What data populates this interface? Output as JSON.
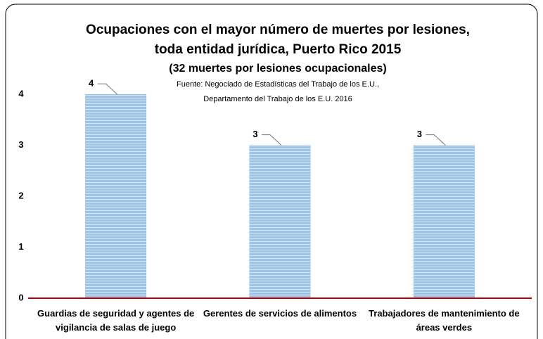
{
  "chart_data": {
    "type": "bar",
    "title": [
      "Ocupaciones con el mayor número de muertes por lesiones,",
      "toda entidad jurídica, Puerto Rico 2015"
    ],
    "subtitle": "(32 muertes por lesiones ocupacionales)",
    "source": [
      "Fuente: Negociado de Estadísticas del Trabajo de los E.U.,",
      "Departamento del Trabajo de los E.U. 2016"
    ],
    "categories": [
      "Guardias de seguridad y agentes de vigilancia de salas de juego",
      "Gerentes de servicios de alimentos",
      "Trabajadores de mantenimiento de áreas verdes"
    ],
    "values": [
      4,
      3,
      3
    ],
    "color": "#9dc3e6",
    "ylim": [
      0,
      4.5
    ],
    "yticks": [
      0,
      1,
      2,
      3,
      4
    ],
    "grid": false
  }
}
